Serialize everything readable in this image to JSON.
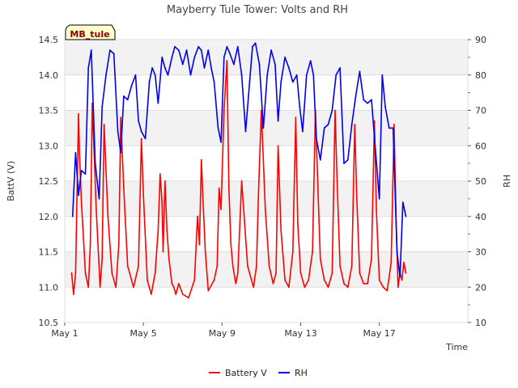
{
  "chart_data": {
    "type": "line",
    "title": "Mayberry Tule Tower: Volts and RH",
    "site_label": "MB_tule",
    "xlabel": "Time",
    "ylabel_left": "BattV (V)",
    "ylabel_right": "RH",
    "x_unit": "days since May 1",
    "xlim": [
      0,
      20.5
    ],
    "ylim_left": [
      10.5,
      14.5
    ],
    "ylim_right": [
      10,
      90
    ],
    "x_ticks": [
      {
        "value": 0,
        "label": "May 1"
      },
      {
        "value": 4,
        "label": "May 5"
      },
      {
        "value": 8,
        "label": "May 9"
      },
      {
        "value": 12,
        "label": "May 13"
      },
      {
        "value": 16,
        "label": "May 17"
      }
    ],
    "y_ticks_left": [
      "10.5",
      "11.0",
      "11.5",
      "12.0",
      "12.5",
      "13.0",
      "13.5",
      "14.0",
      "14.5"
    ],
    "y_ticks_right": [
      "10",
      "20",
      "30",
      "40",
      "50",
      "60",
      "70",
      "80",
      "90"
    ],
    "legend": [
      "Battery V",
      "RH"
    ],
    "colors": {
      "battery": "#ff0000",
      "rh": "#0000ee",
      "band": "#f2f2f2",
      "grid": "#dddddd"
    },
    "series": [
      {
        "name": "Battery V",
        "axis": "left",
        "x": [
          0.35,
          0.45,
          0.55,
          0.7,
          0.75,
          0.85,
          0.95,
          1.05,
          1.2,
          1.3,
          1.4,
          1.6,
          1.8,
          1.9,
          2.0,
          2.2,
          2.4,
          2.6,
          2.75,
          2.85,
          3.0,
          3.2,
          3.5,
          3.75,
          3.9,
          4.0,
          4.2,
          4.4,
          4.6,
          4.75,
          4.85,
          4.95,
          5.0,
          5.1,
          5.2,
          5.3,
          5.45,
          5.55,
          5.65,
          5.8,
          6.0,
          6.3,
          6.6,
          6.75,
          6.85,
          6.95,
          7.05,
          7.15,
          7.3,
          7.6,
          7.75,
          7.85,
          7.95,
          8.1,
          8.25,
          8.35,
          8.45,
          8.55,
          8.7,
          8.8,
          9.0,
          9.3,
          9.6,
          9.75,
          9.85,
          10.0,
          10.2,
          10.4,
          10.6,
          10.75,
          10.85,
          11.0,
          11.2,
          11.4,
          11.6,
          11.75,
          11.85,
          12.0,
          12.2,
          12.4,
          12.6,
          12.75,
          12.85,
          13.0,
          13.2,
          13.4,
          13.6,
          13.75,
          13.85,
          14.0,
          14.2,
          14.4,
          14.6,
          14.75,
          14.85,
          15.0,
          15.2,
          15.4,
          15.6,
          15.75,
          15.85,
          16.0,
          16.2,
          16.4,
          16.6,
          16.75,
          16.85,
          16.95,
          17.05,
          17.15,
          17.25,
          17.35
        ],
        "values": [
          11.2,
          10.9,
          11.2,
          13.45,
          12.9,
          12.2,
          11.7,
          11.2,
          11.0,
          11.6,
          13.6,
          12.1,
          11.0,
          11.4,
          13.3,
          12.0,
          11.2,
          11.0,
          11.6,
          13.4,
          12.4,
          11.3,
          11.0,
          11.3,
          13.1,
          12.3,
          11.1,
          10.9,
          11.2,
          11.8,
          12.6,
          12.2,
          11.5,
          12.5,
          11.8,
          11.4,
          11.05,
          11.0,
          10.9,
          11.05,
          10.9,
          10.85,
          11.1,
          12.0,
          11.6,
          12.8,
          12.1,
          11.5,
          10.95,
          11.1,
          11.3,
          12.4,
          12.1,
          13.5,
          14.2,
          12.4,
          11.6,
          11.3,
          11.05,
          11.2,
          12.5,
          11.3,
          11.0,
          11.3,
          12.3,
          13.5,
          12.1,
          11.3,
          11.05,
          11.2,
          13.0,
          11.8,
          11.1,
          11.0,
          11.5,
          13.4,
          11.9,
          11.2,
          11.0,
          11.1,
          11.5,
          13.5,
          12.6,
          11.4,
          11.1,
          11.0,
          11.2,
          13.5,
          12.5,
          11.3,
          11.05,
          11.0,
          11.3,
          13.3,
          12.3,
          11.2,
          11.05,
          11.05,
          11.4,
          13.35,
          12.1,
          11.1,
          11.0,
          10.95,
          11.35,
          13.3,
          12.0,
          11.0,
          11.2,
          11.1,
          11.35,
          11.2
        ]
      },
      {
        "name": "RH",
        "axis": "right",
        "x": [
          0.4,
          0.55,
          0.7,
          0.85,
          1.05,
          1.2,
          1.35,
          1.55,
          1.75,
          1.9,
          2.1,
          2.3,
          2.5,
          2.7,
          2.85,
          3.0,
          3.2,
          3.4,
          3.6,
          3.75,
          3.9,
          4.1,
          4.3,
          4.45,
          4.6,
          4.75,
          4.95,
          5.1,
          5.25,
          5.45,
          5.6,
          5.8,
          6.0,
          6.2,
          6.4,
          6.6,
          6.8,
          6.95,
          7.1,
          7.3,
          7.45,
          7.6,
          7.8,
          7.95,
          8.1,
          8.25,
          8.4,
          8.6,
          8.8,
          9.0,
          9.2,
          9.4,
          9.55,
          9.7,
          9.9,
          10.1,
          10.3,
          10.5,
          10.7,
          10.85,
          11.0,
          11.2,
          11.4,
          11.6,
          11.8,
          11.95,
          12.1,
          12.3,
          12.5,
          12.65,
          12.8,
          13.0,
          13.2,
          13.4,
          13.6,
          13.8,
          14.0,
          14.2,
          14.4,
          14.6,
          14.8,
          15.0,
          15.2,
          15.4,
          15.6,
          15.8,
          16.0,
          16.15,
          16.3,
          16.5,
          16.7,
          16.9,
          17.05,
          17.2,
          17.35
        ],
        "values": [
          40,
          58,
          46,
          53,
          52,
          82,
          87,
          55,
          45,
          71,
          80,
          87,
          86,
          64,
          58,
          74,
          73,
          77,
          80,
          67,
          64,
          62,
          78,
          82,
          80,
          72,
          85,
          82,
          80,
          85,
          88,
          87,
          83,
          87,
          80,
          85,
          88,
          87,
          82,
          87,
          82,
          78,
          65,
          61,
          85,
          88,
          86,
          83,
          88,
          80,
          64,
          78,
          88,
          89,
          83,
          65,
          80,
          87,
          83,
          67,
          78,
          85,
          82,
          78,
          80,
          71,
          64,
          80,
          84,
          80,
          62,
          56,
          65,
          66,
          70,
          80,
          82,
          55,
          56,
          66,
          74,
          81,
          73,
          72,
          73,
          59,
          45,
          80,
          71,
          65,
          65,
          30,
          23,
          44,
          40
        ]
      }
    ]
  }
}
